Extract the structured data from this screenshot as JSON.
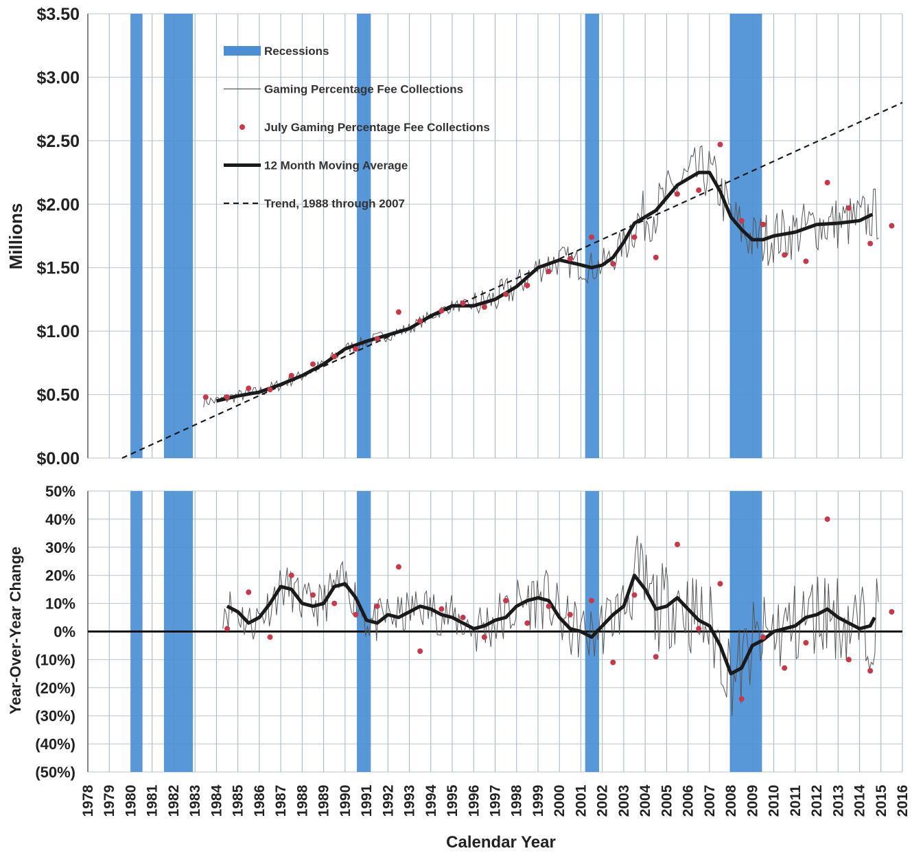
{
  "chart_data": [
    {
      "type": "line",
      "xlabel": "",
      "ylabel": "Millions",
      "ylim": [
        0,
        3.5
      ],
      "xlim": [
        1978,
        2016
      ],
      "y_ticks": [
        "$0.00",
        "$0.50",
        "$1.00",
        "$1.50",
        "$2.00",
        "$2.50",
        "$3.00",
        "$3.50"
      ],
      "y_tick_values": [
        0,
        0.5,
        1.0,
        1.5,
        2.0,
        2.5,
        3.0,
        3.5
      ],
      "grid": true,
      "legend_position": "top-left",
      "colors": {
        "recession": "#4a8fd6",
        "monthly": "#555555",
        "july": "#c8374a",
        "moving_avg": "#1a1a1a",
        "trend": "#1a1a1a"
      },
      "legend": [
        {
          "label": "Recessions",
          "kind": "band"
        },
        {
          "label": "Gaming Percentage Fee Collections",
          "kind": "thin-line"
        },
        {
          "label": "July Gaming Percentage Fee Collections",
          "kind": "dot"
        },
        {
          "label": "12 Month Moving Average",
          "kind": "thick-line"
        },
        {
          "label": "Trend, 1988 through 2007",
          "kind": "dashed-line"
        }
      ],
      "recessions": [
        [
          1980.0,
          1980.55
        ],
        [
          1981.55,
          1982.9
        ],
        [
          1990.55,
          1991.2
        ],
        [
          2001.2,
          2001.85
        ],
        [
          2007.95,
          2009.45
        ]
      ],
      "trend": {
        "x": [
          1979.6,
          2016.0
        ],
        "y": [
          0.0,
          2.8
        ]
      },
      "moving_average": {
        "x": [
          1984.0,
          1985.0,
          1986.0,
          1987.0,
          1988.0,
          1989.0,
          1990.0,
          1991.0,
          1992.0,
          1993.0,
          1994.0,
          1995.0,
          1996.0,
          1997.0,
          1998.0,
          1999.0,
          2000.0,
          2000.8,
          2001.5,
          2002.0,
          2002.5,
          2003.0,
          2003.5,
          2004.0,
          2004.5,
          2005.0,
          2005.5,
          2006.0,
          2006.5,
          2007.0,
          2007.5,
          2008.0,
          2008.5,
          2009.0,
          2009.5,
          2010.0,
          2011.0,
          2012.0,
          2013.0,
          2014.0,
          2014.6
        ],
        "y": [
          0.45,
          0.49,
          0.52,
          0.58,
          0.65,
          0.74,
          0.86,
          0.92,
          0.97,
          1.02,
          1.12,
          1.2,
          1.2,
          1.25,
          1.35,
          1.5,
          1.56,
          1.53,
          1.5,
          1.52,
          1.58,
          1.7,
          1.85,
          1.9,
          1.95,
          2.05,
          2.15,
          2.2,
          2.25,
          2.25,
          2.1,
          1.9,
          1.8,
          1.72,
          1.72,
          1.75,
          1.78,
          1.84,
          1.85,
          1.87,
          1.92
        ]
      },
      "july": {
        "x": [
          1983.5,
          1984.5,
          1985.5,
          1986.5,
          1987.5,
          1988.5,
          1989.5,
          1990.5,
          1991.5,
          1992.5,
          1993.5,
          1994.5,
          1995.5,
          1996.5,
          1997.5,
          1998.5,
          1999.5,
          2000.5,
          2001.5,
          2002.5,
          2003.5,
          2004.5,
          2005.5,
          2006.5,
          2007.5,
          2008.5,
          2009.5,
          2010.5,
          2011.5,
          2012.5,
          2013.5,
          2014.5,
          2015.5
        ],
        "y": [
          0.48,
          0.48,
          0.55,
          0.54,
          0.65,
          0.74,
          0.8,
          0.86,
          0.94,
          1.15,
          1.08,
          1.16,
          1.22,
          1.19,
          1.29,
          1.36,
          1.47,
          1.57,
          1.74,
          1.53,
          1.74,
          1.58,
          2.08,
          2.11,
          2.47,
          1.87,
          1.84,
          1.6,
          1.55,
          2.17,
          1.97,
          1.69,
          1.83
        ]
      }
    },
    {
      "type": "line",
      "xlabel": "Calendar Year",
      "ylabel": "Year-Over-Year Change",
      "ylim": [
        -50,
        50
      ],
      "xlim": [
        1978,
        2016
      ],
      "y_ticks": [
        "50%",
        "40%",
        "30%",
        "20%",
        "10%",
        "0%",
        "(10%)",
        "(20%)",
        "(30%)",
        "(40%)",
        "(50%)"
      ],
      "y_tick_values": [
        50,
        40,
        30,
        20,
        10,
        0,
        -10,
        -20,
        -30,
        -40,
        -50
      ],
      "x_ticks": [
        "1978",
        "1979",
        "1980",
        "1981",
        "1982",
        "1983",
        "1984",
        "1985",
        "1986",
        "1987",
        "1988",
        "1989",
        "1990",
        "1991",
        "1992",
        "1993",
        "1994",
        "1995",
        "1996",
        "1997",
        "1998",
        "1999",
        "2000",
        "2001",
        "2002",
        "2003",
        "2004",
        "2005",
        "2006",
        "2007",
        "2008",
        "2009",
        "2010",
        "2011",
        "2012",
        "2013",
        "2014",
        "2015",
        "2016"
      ],
      "grid": true,
      "colors": {
        "positive_tick": "#222222",
        "negative_tick": "#b02a3e"
      },
      "moving_average": {
        "x": [
          1984.5,
          1985.0,
          1985.5,
          1986.0,
          1986.5,
          1987.0,
          1987.5,
          1988.0,
          1988.5,
          1989.0,
          1989.5,
          1990.0,
          1990.5,
          1991.0,
          1991.5,
          1992.0,
          1992.5,
          1993.0,
          1993.5,
          1994.0,
          1994.5,
          1995.0,
          1995.5,
          1996.0,
          1996.5,
          1997.0,
          1997.5,
          1998.0,
          1998.5,
          1999.0,
          1999.5,
          2000.0,
          2000.5,
          2001.0,
          2001.5,
          2002.0,
          2002.5,
          2003.0,
          2003.5,
          2004.0,
          2004.5,
          2005.0,
          2005.5,
          2006.0,
          2006.5,
          2007.0,
          2007.5,
          2008.0,
          2008.5,
          2009.0,
          2009.5,
          2010.0,
          2010.5,
          2011.0,
          2011.5,
          2012.0,
          2012.5,
          2013.0,
          2013.5,
          2014.0,
          2014.5,
          2014.7
        ],
        "y": [
          9,
          7,
          3,
          5,
          10,
          16,
          15,
          10,
          9,
          10,
          16,
          17,
          12,
          4,
          3,
          6,
          5,
          7,
          9,
          8,
          6,
          5,
          3,
          1,
          2,
          4,
          5,
          9,
          11,
          12,
          11,
          5,
          1,
          0,
          -2,
          2,
          6,
          9,
          20,
          15,
          8,
          9,
          12,
          8,
          4,
          2,
          -5,
          -15,
          -13,
          -5,
          -3,
          0,
          1,
          2,
          5,
          6,
          8,
          5,
          3,
          1,
          2,
          5
        ]
      },
      "july": {
        "x": [
          1984.5,
          1985.5,
          1986.5,
          1987.5,
          1988.5,
          1989.5,
          1990.5,
          1991.5,
          1992.5,
          1993.5,
          1994.5,
          1995.5,
          1996.5,
          1997.5,
          1998.5,
          1999.5,
          2000.5,
          2001.5,
          2002.5,
          2003.5,
          2004.5,
          2005.5,
          2006.5,
          2007.5,
          2008.5,
          2009.5,
          2010.5,
          2011.5,
          2012.5,
          2013.5,
          2014.5,
          2015.5
        ],
        "y": [
          1,
          14,
          -2,
          20,
          13,
          10,
          6,
          9,
          23,
          -7,
          8,
          5,
          -2,
          11,
          3,
          9,
          6,
          11,
          -11,
          13,
          -9,
          31,
          1,
          17,
          -24,
          -2,
          -13,
          -4,
          40,
          -10,
          -14,
          7
        ]
      }
    }
  ]
}
